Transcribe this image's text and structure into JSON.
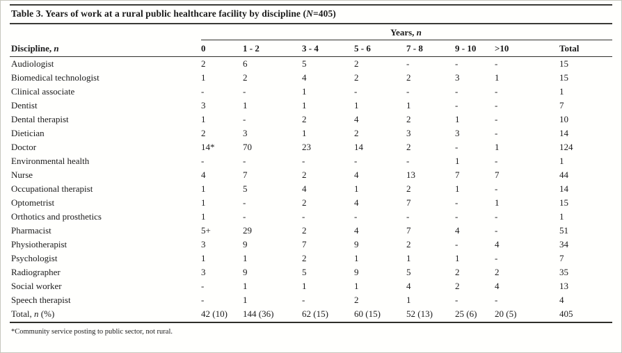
{
  "title": {
    "prefix": "Table 3. Years of work at a rural public healthcare facility by discipline (",
    "n": "N",
    "suffix": "=405)"
  },
  "table": {
    "span_header": {
      "prefix": "Years, ",
      "n": "n"
    },
    "discipline_header": {
      "prefix": "Discipline, ",
      "n": "n"
    },
    "year_columns": [
      "0",
      "1 - 2",
      "3 - 4",
      "5 - 6",
      "7 - 8",
      "9 - 10",
      ">10",
      "Total"
    ],
    "rows": [
      [
        "Audiologist",
        "2",
        "6",
        "5",
        "2",
        "-",
        "-",
        "-",
        "15"
      ],
      [
        "Biomedical technologist",
        "1",
        "2",
        "4",
        "2",
        "2",
        "3",
        "1",
        "15"
      ],
      [
        "Clinical associate",
        "-",
        "-",
        "1",
        "-",
        "-",
        "-",
        "-",
        "1"
      ],
      [
        "Dentist",
        "3",
        "1",
        "1",
        "1",
        "1",
        "-",
        "-",
        "7"
      ],
      [
        "Dental therapist",
        "1",
        "-",
        "2",
        "4",
        "2",
        "1",
        "-",
        "10"
      ],
      [
        "Dietician",
        "2",
        "3",
        "1",
        "2",
        "3",
        "3",
        "-",
        "14"
      ],
      [
        "Doctor",
        "14*",
        "70",
        "23",
        "14",
        "2",
        "-",
        "1",
        "124"
      ],
      [
        "Environmental health",
        "-",
        "-",
        "-",
        "-",
        "-",
        "1",
        "-",
        "1"
      ],
      [
        "Nurse",
        "4",
        "7",
        "2",
        "4",
        "13",
        "7",
        "7",
        "44"
      ],
      [
        "Occupational therapist",
        "1",
        "5",
        "4",
        "1",
        "2",
        "1",
        "-",
        "14"
      ],
      [
        "Optometrist",
        "1",
        "-",
        "2",
        "4",
        "7",
        "-",
        "1",
        "15"
      ],
      [
        "Orthotics and prosthetics",
        "1",
        "-",
        "-",
        "-",
        "-",
        "-",
        "-",
        "1"
      ],
      [
        "Pharmacist",
        "5+",
        "29",
        "2",
        "4",
        "7",
        "4",
        "-",
        "51"
      ],
      [
        "Physiotherapist",
        "3",
        "9",
        "7",
        "9",
        "2",
        "-",
        "4",
        "34"
      ],
      [
        "Psychologist",
        "1",
        "1",
        "2",
        "1",
        "1",
        "1",
        "-",
        "7"
      ],
      [
        "Radiographer",
        "3",
        "9",
        "5",
        "9",
        "5",
        "2",
        "2",
        "35"
      ],
      [
        "Social worker",
        "-",
        "1",
        "1",
        "1",
        "4",
        "2",
        "4",
        "13"
      ],
      [
        "Speech therapist",
        "-",
        "1",
        "-",
        "2",
        "1",
        "-",
        "-",
        "4"
      ]
    ],
    "total": {
      "prefix": "Total, ",
      "n": "n",
      "suffix": " (%)",
      "values": [
        "42 (10)",
        "144 (36)",
        "62 (15)",
        "60 (15)",
        "52 (13)",
        "25 (6)",
        "20 (5)",
        "405"
      ]
    }
  },
  "footnote": "*Community service posting to public sector, not rural."
}
